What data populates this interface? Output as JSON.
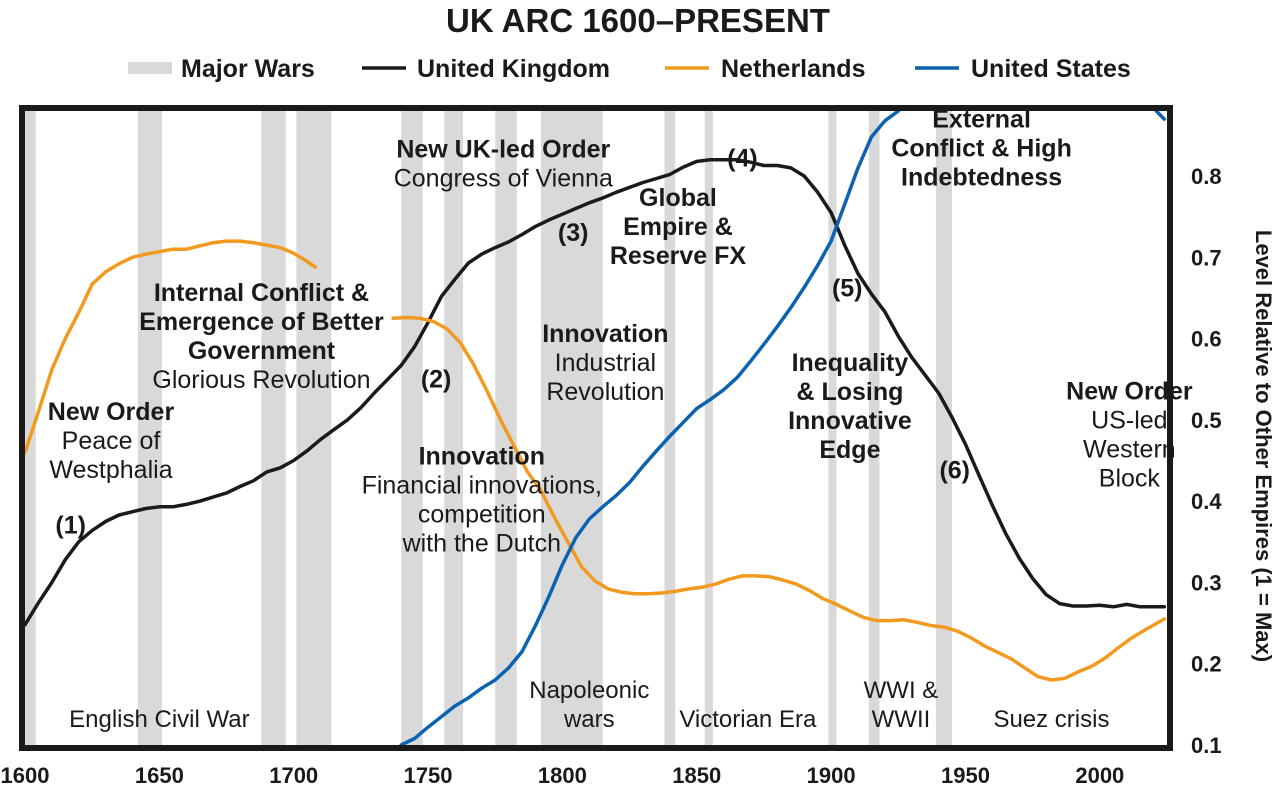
{
  "chart_data": {
    "type": "line",
    "title": "UK ARC 1600–PRESENT",
    "xlabel": "",
    "ylabel": "Level Relative to Other Empires (1 = Max)",
    "xlim": [
      1600,
      2025
    ],
    "ylim": [
      0.1,
      0.88
    ],
    "xticks": [
      "1600",
      "1650",
      "1700",
      "1750",
      "1800",
      "1850",
      "1900",
      "1950",
      "2000"
    ],
    "yticks": [
      "0.8",
      "0.7",
      "0.6",
      "0.5",
      "0.4",
      "0.3",
      "0.2",
      "0.1"
    ],
    "legend": {
      "position": "top",
      "items": [
        {
          "label": "Major Wars",
          "kind": "band",
          "color": "#d9d9d9"
        },
        {
          "label": "United Kingdom",
          "kind": "line",
          "color": "#1a1a1a"
        },
        {
          "label": "Netherlands",
          "kind": "line",
          "color": "#f29a1f"
        },
        {
          "label": "United States",
          "kind": "line",
          "color": "#0b62b0"
        }
      ]
    },
    "wars": [
      [
        1600,
        1604
      ],
      [
        1642,
        1651
      ],
      [
        1688,
        1697
      ],
      [
        1701,
        1714
      ],
      [
        1740,
        1748
      ],
      [
        1756,
        1763
      ],
      [
        1775,
        1783
      ],
      [
        1792,
        1815
      ],
      [
        1838,
        1842
      ],
      [
        1853,
        1856
      ],
      [
        1899,
        1902
      ],
      [
        1914,
        1918
      ],
      [
        1939,
        1945
      ]
    ],
    "series": [
      {
        "name": "United Kingdom",
        "color": "#1a1a1a",
        "x": [
          1600,
          1605,
          1610,
          1615,
          1620,
          1625,
          1630,
          1635,
          1640,
          1645,
          1650,
          1655,
          1660,
          1665,
          1670,
          1675,
          1680,
          1685,
          1690,
          1695,
          1700,
          1705,
          1710,
          1715,
          1720,
          1725,
          1730,
          1735,
          1740,
          1745,
          1750,
          1755,
          1760,
          1765,
          1770,
          1775,
          1780,
          1785,
          1790,
          1795,
          1800,
          1805,
          1810,
          1815,
          1820,
          1825,
          1830,
          1835,
          1840,
          1845,
          1850,
          1855,
          1860,
          1865,
          1870,
          1875,
          1880,
          1885,
          1890,
          1895,
          1900,
          1905,
          1910,
          1915,
          1920,
          1925,
          1930,
          1935,
          1940,
          1945,
          1950,
          1955,
          1960,
          1965,
          1970,
          1975,
          1980,
          1985,
          1990,
          1995,
          2000,
          2005,
          2010,
          2015,
          2020,
          2024
        ],
        "y": [
          0.248,
          0.275,
          0.3,
          0.328,
          0.35,
          0.364,
          0.375,
          0.383,
          0.387,
          0.391,
          0.393,
          0.393,
          0.396,
          0.4,
          0.405,
          0.41,
          0.418,
          0.425,
          0.436,
          0.441,
          0.45,
          0.462,
          0.476,
          0.488,
          0.5,
          0.515,
          0.533,
          0.55,
          0.567,
          0.59,
          0.62,
          0.652,
          0.673,
          0.693,
          0.704,
          0.712,
          0.719,
          0.728,
          0.738,
          0.746,
          0.753,
          0.76,
          0.767,
          0.773,
          0.78,
          0.786,
          0.792,
          0.797,
          0.802,
          0.811,
          0.818,
          0.82,
          0.82,
          0.82,
          0.817,
          0.813,
          0.813,
          0.81,
          0.8,
          0.78,
          0.755,
          0.715,
          0.68,
          0.655,
          0.633,
          0.603,
          0.577,
          0.555,
          0.533,
          0.503,
          0.47,
          0.432,
          0.395,
          0.36,
          0.33,
          0.305,
          0.285,
          0.274,
          0.271,
          0.271,
          0.272,
          0.27,
          0.273,
          0.27,
          0.27,
          0.27
        ]
      },
      {
        "name": "Netherlands",
        "color": "#f29a1f",
        "x": [
          1600,
          1605,
          1610,
          1615,
          1620,
          1625,
          1630,
          1635,
          1640,
          1645,
          1650,
          1655,
          1660,
          1665,
          1670,
          1675,
          1680,
          1685,
          1690,
          1695,
          1700,
          1705,
          1708
        ],
        "y": [
          0.46,
          0.51,
          0.562,
          0.6,
          0.632,
          0.667,
          0.682,
          0.692,
          0.7,
          0.704,
          0.707,
          0.71,
          0.71,
          0.714,
          0.718,
          0.72,
          0.72,
          0.718,
          0.715,
          0.712,
          0.705,
          0.695,
          0.688
        ]
      },
      {
        "name": "Netherlands",
        "color": "#f29a1f",
        "x": [
          1737,
          1742,
          1747,
          1752,
          1757,
          1762,
          1767,
          1772,
          1777,
          1782,
          1787,
          1792,
          1797,
          1802,
          1807,
          1812,
          1817,
          1822,
          1827,
          1832,
          1837,
          1842,
          1847,
          1852,
          1857,
          1862,
          1867,
          1872,
          1877,
          1882,
          1887,
          1892,
          1897,
          1902,
          1907,
          1912,
          1917,
          1922,
          1927,
          1932,
          1937,
          1942,
          1947,
          1952,
          1957,
          1962,
          1967,
          1972,
          1977,
          1982,
          1987,
          1992,
          1997,
          2002,
          2007,
          2012,
          2017,
          2024
        ],
        "y": [
          0.625,
          0.626,
          0.625,
          0.621,
          0.612,
          0.595,
          0.568,
          0.535,
          0.5,
          0.468,
          0.436,
          0.413,
          0.38,
          0.35,
          0.32,
          0.302,
          0.292,
          0.288,
          0.286,
          0.286,
          0.287,
          0.289,
          0.292,
          0.294,
          0.298,
          0.304,
          0.308,
          0.308,
          0.307,
          0.303,
          0.298,
          0.29,
          0.28,
          0.273,
          0.265,
          0.257,
          0.253,
          0.253,
          0.254,
          0.251,
          0.247,
          0.245,
          0.24,
          0.232,
          0.222,
          0.214,
          0.206,
          0.195,
          0.184,
          0.18,
          0.182,
          0.19,
          0.197,
          0.207,
          0.22,
          0.232,
          0.242,
          0.255
        ]
      },
      {
        "name": "United States",
        "color": "#0b62b0",
        "x": [
          1740,
          1745,
          1750,
          1755,
          1760,
          1765,
          1770,
          1775,
          1780,
          1785,
          1790,
          1795,
          1800,
          1805,
          1810,
          1815,
          1820,
          1825,
          1830,
          1835,
          1840,
          1845,
          1850,
          1855,
          1860,
          1865,
          1870,
          1875,
          1880,
          1885,
          1890,
          1895,
          1900,
          1905,
          1910,
          1915,
          1920,
          1925,
          1930
        ],
        "y": [
          0.1,
          0.108,
          0.122,
          0.135,
          0.148,
          0.158,
          0.17,
          0.18,
          0.195,
          0.215,
          0.247,
          0.283,
          0.322,
          0.355,
          0.378,
          0.393,
          0.407,
          0.423,
          0.443,
          0.462,
          0.48,
          0.497,
          0.514,
          0.525,
          0.537,
          0.552,
          0.572,
          0.593,
          0.615,
          0.638,
          0.663,
          0.69,
          0.72,
          0.765,
          0.81,
          0.848,
          0.868,
          0.88,
          0.9
        ]
      },
      {
        "name": "United States",
        "color": "#0b62b0",
        "x": [
          2021,
          2024
        ],
        "y": [
          0.88,
          0.87
        ]
      }
    ],
    "annotations": [
      {
        "id": "a1",
        "lines": [
          {
            "t": "New Order",
            "b": true
          },
          {
            "t": "Peace of",
            "b": false
          },
          {
            "t": "Westphalia",
            "b": false
          }
        ],
        "x": 1632,
        "y": 0.5
      },
      {
        "id": "a2",
        "lines": [
          {
            "t": "Internal Conflict &",
            "b": true
          },
          {
            "t": "Emergence of Better",
            "b": true
          },
          {
            "t": "Government",
            "b": true
          },
          {
            "t": "Glorious Revolution",
            "b": false
          }
        ],
        "x": 1688,
        "y": 0.646
      },
      {
        "id": "a3",
        "lines": [
          {
            "t": "New UK-led Order",
            "b": true
          },
          {
            "t": "Congress of Vienna",
            "b": false
          }
        ],
        "x": 1778,
        "y": 0.823
      },
      {
        "id": "a4",
        "lines": [
          {
            "t": "Global",
            "b": true
          },
          {
            "t": "Empire &",
            "b": true
          },
          {
            "t": "Reserve FX",
            "b": true
          }
        ],
        "x": 1843,
        "y": 0.763
      },
      {
        "id": "a5",
        "lines": [
          {
            "t": "Innovation",
            "b": true
          },
          {
            "t": "Industrial",
            "b": false
          },
          {
            "t": "Revolution",
            "b": false
          }
        ],
        "x": 1816,
        "y": 0.596
      },
      {
        "id": "a6",
        "lines": [
          {
            "t": "Innovation",
            "b": true
          },
          {
            "t": "Financial innovations,",
            "b": false
          },
          {
            "t": "competition",
            "b": false
          },
          {
            "t": "with the Dutch",
            "b": false
          }
        ],
        "x": 1770,
        "y": 0.445
      },
      {
        "id": "a7",
        "lines": [
          {
            "t": "External",
            "b": true
          },
          {
            "t": "Conflict & High",
            "b": true
          },
          {
            "t": "Indebtedness",
            "b": true
          }
        ],
        "x": 1956,
        "y": 0.86
      },
      {
        "id": "a8",
        "lines": [
          {
            "t": "Inequality",
            "b": true
          },
          {
            "t": "& Losing",
            "b": true
          },
          {
            "t": "Innovative",
            "b": true
          },
          {
            "t": "Edge",
            "b": true
          }
        ],
        "x": 1907,
        "y": 0.56
      },
      {
        "id": "a9",
        "lines": [
          {
            "t": "New Order",
            "b": true
          },
          {
            "t": "US-led",
            "b": false
          },
          {
            "t": "Western",
            "b": false
          },
          {
            "t": "Block",
            "b": false
          }
        ],
        "x": 2011,
        "y": 0.525
      }
    ],
    "markers": [
      {
        "label": "(1)",
        "x": 1617,
        "y": 0.36
      },
      {
        "label": "(2)",
        "x": 1753,
        "y": 0.54
      },
      {
        "label": "(3)",
        "x": 1804,
        "y": 0.72
      },
      {
        "label": "(4)",
        "x": 1867,
        "y": 0.812
      },
      {
        "label": "(5)",
        "x": 1906,
        "y": 0.652
      },
      {
        "label": "(6)",
        "x": 1946,
        "y": 0.428
      }
    ],
    "era_labels": [
      {
        "lines": [
          "English Civil War"
        ],
        "x": 1650
      },
      {
        "lines": [
          "Napoleonic",
          "wars"
        ],
        "x": 1810
      },
      {
        "lines": [
          "Victorian Era"
        ],
        "x": 1869
      },
      {
        "lines": [
          "WWI &",
          "WWII"
        ],
        "x": 1926
      },
      {
        "lines": [
          "Suez crisis"
        ],
        "x": 1982
      }
    ]
  }
}
